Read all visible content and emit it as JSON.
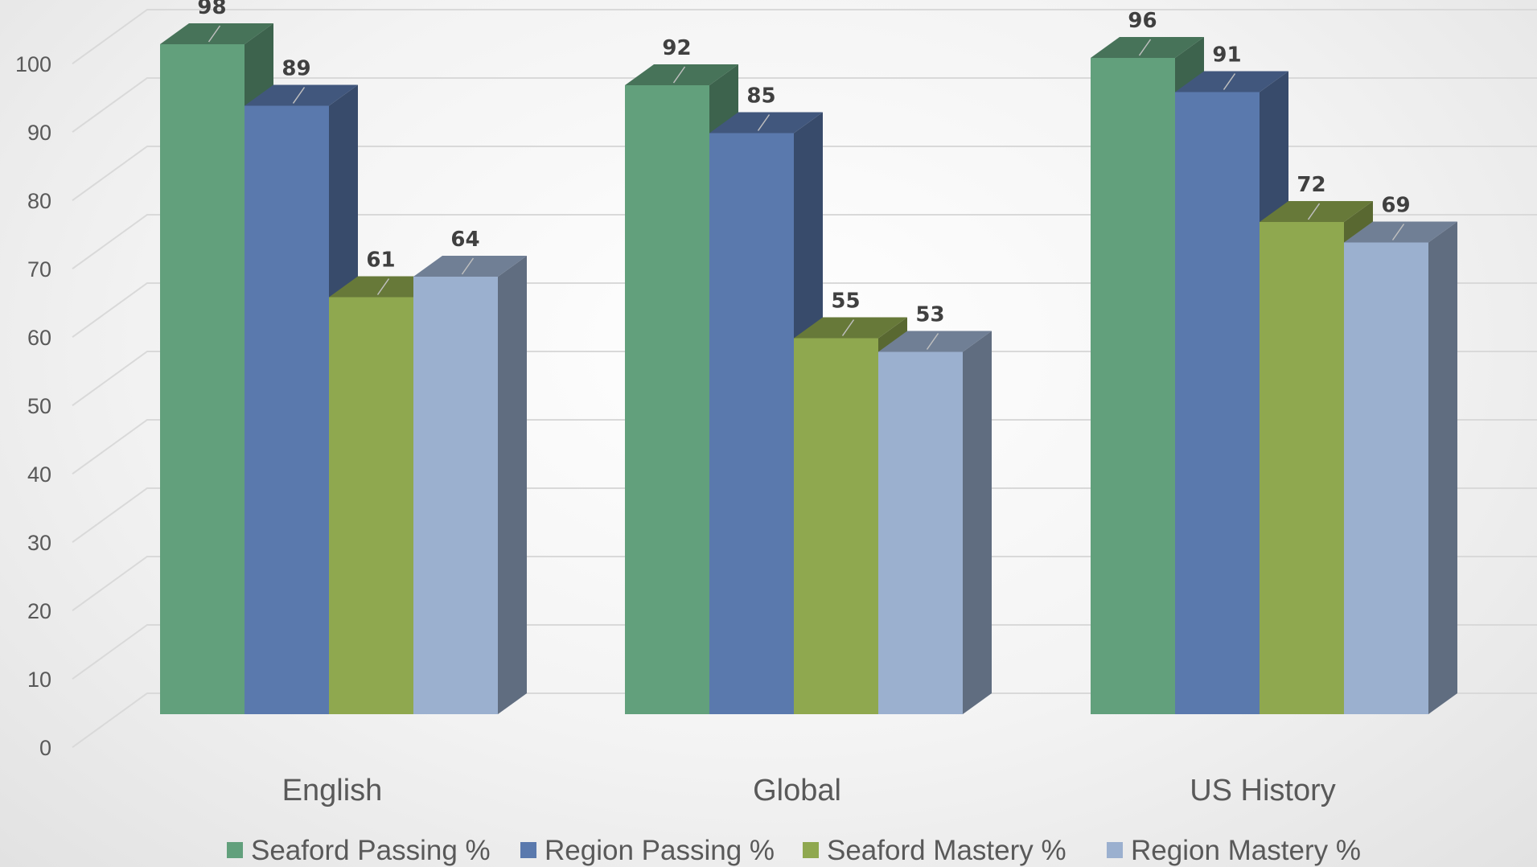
{
  "chart_data": {
    "type": "bar",
    "title": "",
    "xlabel": "",
    "ylabel": "",
    "ylim": [
      0,
      100
    ],
    "yticks": [
      0,
      10,
      20,
      30,
      40,
      50,
      60,
      70,
      80,
      90,
      100
    ],
    "grid": true,
    "legend_position": "bottom",
    "categories": [
      "English",
      "Global",
      "US History"
    ],
    "series": [
      {
        "name": "Seaford Passing %",
        "color": "#62a07c",
        "values": [
          98,
          92,
          96
        ]
      },
      {
        "name": "Region Passing %",
        "color": "#5a79ad",
        "values": [
          89,
          85,
          91
        ]
      },
      {
        "name": "Seaford Mastery %",
        "color": "#8fa84f",
        "values": [
          61,
          55,
          72
        ]
      },
      {
        "name": "Region Mastery %",
        "color": "#9bb0cf",
        "values": [
          64,
          53,
          69
        ]
      }
    ]
  }
}
